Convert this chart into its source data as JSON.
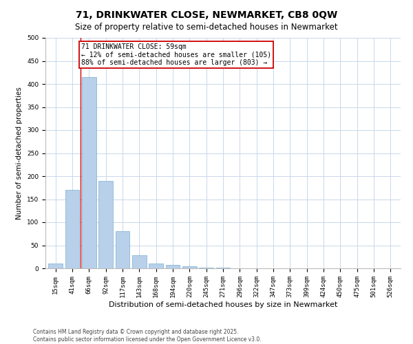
{
  "title": "71, DRINKWATER CLOSE, NEWMARKET, CB8 0QW",
  "subtitle": "Size of property relative to semi-detached houses in Newmarket",
  "xlabel": "Distribution of semi-detached houses by size in Newmarket",
  "ylabel": "Number of semi-detached properties",
  "categories": [
    "15sqm",
    "41sqm",
    "66sqm",
    "92sqm",
    "117sqm",
    "143sqm",
    "168sqm",
    "194sqm",
    "220sqm",
    "245sqm",
    "271sqm",
    "296sqm",
    "322sqm",
    "347sqm",
    "373sqm",
    "399sqm",
    "424sqm",
    "450sqm",
    "475sqm",
    "501sqm",
    "526sqm"
  ],
  "values": [
    10,
    170,
    415,
    190,
    80,
    28,
    10,
    7,
    5,
    2,
    1,
    0,
    0,
    0,
    0,
    0,
    0,
    0,
    0,
    0,
    0
  ],
  "bar_color": "#b8d0ea",
  "bar_edge_color": "#7aaed0",
  "vline_x": 1.5,
  "vline_color": "#cc0000",
  "annotation_line1": "71 DRINKWATER CLOSE: 59sqm",
  "annotation_line2": "← 12% of semi-detached houses are smaller (105)",
  "annotation_line3": "88% of semi-detached houses are larger (803) →",
  "annotation_box_color": "#cc0000",
  "ylim": [
    0,
    500
  ],
  "yticks": [
    0,
    50,
    100,
    150,
    200,
    250,
    300,
    350,
    400,
    450,
    500
  ],
  "bg_color": "#ffffff",
  "grid_color": "#c8d8ea",
  "footnote": "Contains HM Land Registry data © Crown copyright and database right 2025.\nContains public sector information licensed under the Open Government Licence v3.0.",
  "title_fontsize": 10,
  "subtitle_fontsize": 8.5,
  "tick_fontsize": 6.5,
  "xlabel_fontsize": 8,
  "ylabel_fontsize": 7.5,
  "annot_fontsize": 7,
  "footnote_fontsize": 5.5
}
